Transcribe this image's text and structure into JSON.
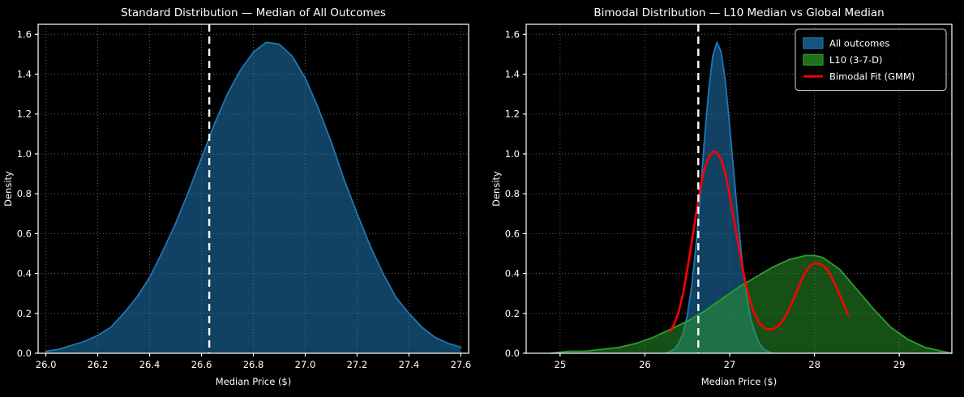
{
  "figure": {
    "background": "#000000",
    "text_color": "#ffffff",
    "grid_color": "#9a9a9a"
  },
  "chart_data": [
    {
      "type": "area",
      "title": "Standard Distribution — Median of All Outcomes",
      "xlabel": "Median Price ($)",
      "ylabel": "Density",
      "xlim": [
        25.97,
        27.63
      ],
      "ylim": [
        0,
        1.65
      ],
      "xticks": [
        26.0,
        26.2,
        26.4,
        26.6,
        26.8,
        27.0,
        27.2,
        27.4,
        27.6
      ],
      "xtick_labels": [
        "26.0",
        "26.2",
        "26.4",
        "26.6",
        "26.8",
        "27.0",
        "27.2",
        "27.4",
        "27.6"
      ],
      "yticks": [
        0.0,
        0.2,
        0.4,
        0.6,
        0.8,
        1.0,
        1.2,
        1.4,
        1.6
      ],
      "ytick_labels": [
        "0.0",
        "0.2",
        "0.4",
        "0.6",
        "0.8",
        "1.0",
        "1.2",
        "1.4",
        "1.6"
      ],
      "grid": true,
      "median_line": {
        "x": 26.63,
        "color": "#ffffff",
        "style": "dashed"
      },
      "series": [
        {
          "name": "All outcomes",
          "slug": "all-outcomes",
          "kind": "area",
          "color": "#1f77b4",
          "fill_opacity": 0.55,
          "x": [
            26.0,
            26.05,
            26.1,
            26.15,
            26.2,
            26.25,
            26.3,
            26.35,
            26.4,
            26.45,
            26.5,
            26.55,
            26.6,
            26.65,
            26.7,
            26.75,
            26.8,
            26.85,
            26.9,
            26.95,
            27.0,
            27.05,
            27.1,
            27.15,
            27.2,
            27.25,
            27.3,
            27.35,
            27.4,
            27.45,
            27.5,
            27.55,
            27.6
          ],
          "y": [
            0.01,
            0.02,
            0.04,
            0.06,
            0.09,
            0.13,
            0.2,
            0.28,
            0.38,
            0.51,
            0.65,
            0.81,
            0.98,
            1.15,
            1.3,
            1.42,
            1.51,
            1.56,
            1.55,
            1.49,
            1.38,
            1.23,
            1.06,
            0.87,
            0.7,
            0.54,
            0.4,
            0.28,
            0.2,
            0.13,
            0.08,
            0.05,
            0.03
          ]
        }
      ]
    },
    {
      "type": "area",
      "title": "Bimodal Distribution — L10 Median vs Global Median",
      "xlabel": "Median Price ($)",
      "ylabel": "Density",
      "xlim": [
        24.6,
        29.62
      ],
      "ylim": [
        0,
        1.65
      ],
      "xticks": [
        25,
        26,
        27,
        28,
        29
      ],
      "xtick_labels": [
        "25",
        "26",
        "27",
        "28",
        "29"
      ],
      "yticks": [
        0.0,
        0.2,
        0.4,
        0.6,
        0.8,
        1.0,
        1.2,
        1.4,
        1.6
      ],
      "ytick_labels": [
        "0.0",
        "0.2",
        "0.4",
        "0.6",
        "0.8",
        "1.0",
        "1.2",
        "1.4",
        "1.6"
      ],
      "grid": true,
      "median_line": {
        "x": 26.63,
        "color": "#ffffff",
        "style": "dashed"
      },
      "legend": {
        "position": "upper right",
        "entries": [
          {
            "label": "All outcomes",
            "color": "#1f77b4",
            "swatch": "patch"
          },
          {
            "label": "L10 (3-7-D)",
            "color": "#2ca02c",
            "swatch": "patch"
          },
          {
            "label": "Bimodal Fit (GMM)",
            "color": "#ff0000",
            "swatch": "line"
          }
        ]
      },
      "series": [
        {
          "name": "All outcomes",
          "slug": "all-outcomes",
          "kind": "area",
          "color": "#1f77b4",
          "fill_opacity": 0.55,
          "x": [
            26.25,
            26.3,
            26.35,
            26.4,
            26.45,
            26.5,
            26.55,
            26.6,
            26.65,
            26.7,
            26.75,
            26.8,
            26.85,
            26.9,
            26.95,
            27.0,
            27.05,
            27.1,
            27.15,
            27.2,
            27.25,
            27.3,
            27.35,
            27.4,
            27.45,
            27.5
          ],
          "y": [
            0.0,
            0.01,
            0.02,
            0.05,
            0.1,
            0.19,
            0.33,
            0.53,
            0.78,
            1.06,
            1.31,
            1.49,
            1.56,
            1.51,
            1.36,
            1.14,
            0.9,
            0.66,
            0.45,
            0.29,
            0.17,
            0.1,
            0.05,
            0.02,
            0.01,
            0.0
          ]
        },
        {
          "name": "L10 (3-7-D)",
          "slug": "l10-3-7-d",
          "kind": "area",
          "color": "#2ca02c",
          "fill_opacity": 0.5,
          "x": [
            24.9,
            25.1,
            25.3,
            25.5,
            25.7,
            25.9,
            26.1,
            26.3,
            26.5,
            26.7,
            26.9,
            27.1,
            27.3,
            27.5,
            27.7,
            27.9,
            28.0,
            28.1,
            28.3,
            28.5,
            28.7,
            28.9,
            29.1,
            29.3,
            29.5,
            29.62
          ],
          "y": [
            0.0,
            0.01,
            0.01,
            0.02,
            0.03,
            0.05,
            0.08,
            0.12,
            0.16,
            0.21,
            0.27,
            0.33,
            0.38,
            0.43,
            0.47,
            0.49,
            0.49,
            0.48,
            0.42,
            0.32,
            0.22,
            0.13,
            0.07,
            0.03,
            0.01,
            0.0
          ]
        },
        {
          "name": "Bimodal Fit (GMM)",
          "slug": "bimodal-fit-gmm",
          "kind": "line",
          "color": "#ff0000",
          "x": [
            26.3,
            26.35,
            26.4,
            26.45,
            26.5,
            26.55,
            26.6,
            26.65,
            26.7,
            26.75,
            26.8,
            26.85,
            26.9,
            26.95,
            27.0,
            27.05,
            27.1,
            27.15,
            27.2,
            27.25,
            27.3,
            27.35,
            27.4,
            27.45,
            27.5,
            27.55,
            27.6,
            27.65,
            27.7,
            27.75,
            27.8,
            27.85,
            27.9,
            27.95,
            28.0,
            28.05,
            28.1,
            28.15,
            28.2,
            28.25,
            28.3,
            28.35,
            28.4
          ],
          "y": [
            0.11,
            0.15,
            0.21,
            0.3,
            0.42,
            0.55,
            0.69,
            0.82,
            0.92,
            0.98,
            1.01,
            1.01,
            0.97,
            0.9,
            0.79,
            0.67,
            0.55,
            0.43,
            0.33,
            0.25,
            0.19,
            0.15,
            0.13,
            0.12,
            0.12,
            0.13,
            0.15,
            0.18,
            0.22,
            0.27,
            0.32,
            0.37,
            0.41,
            0.44,
            0.45,
            0.45,
            0.44,
            0.42,
            0.38,
            0.34,
            0.29,
            0.24,
            0.19
          ]
        }
      ]
    }
  ]
}
